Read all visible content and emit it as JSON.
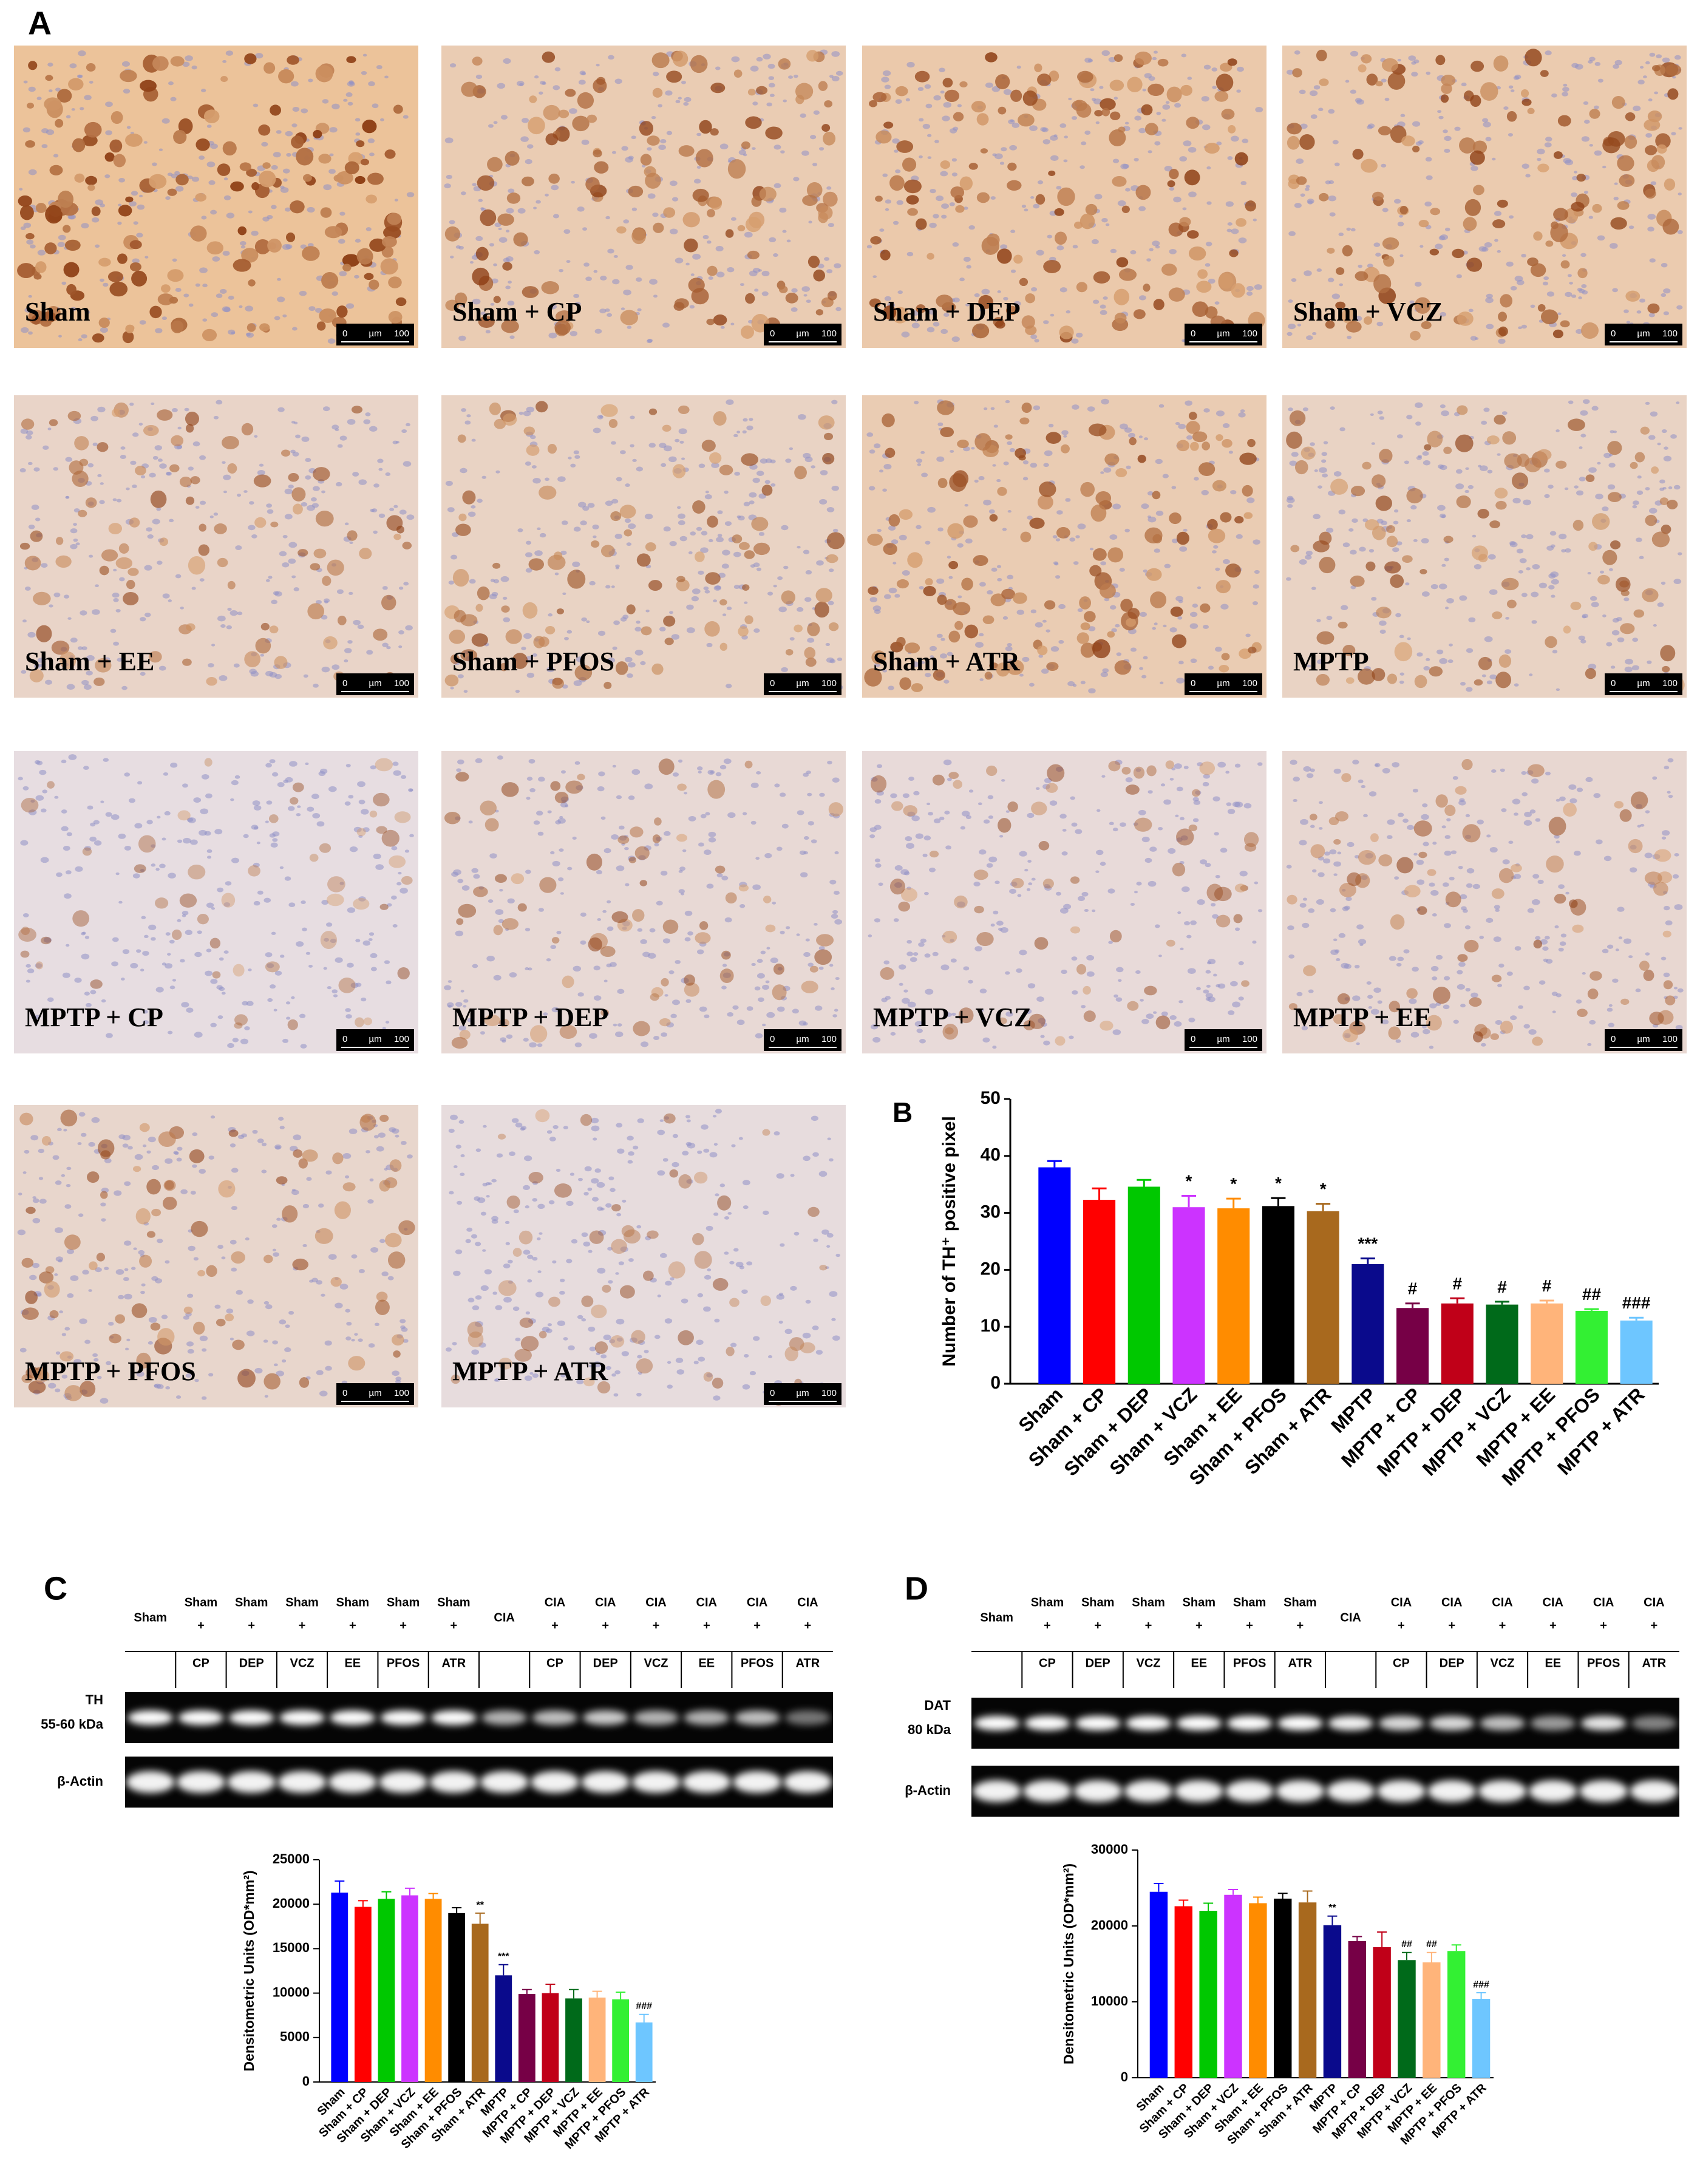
{
  "panel_labels": [
    "A",
    "B",
    "C",
    "D"
  ],
  "micrographs": {
    "labels": [
      "Sham",
      "Sham + CP",
      "Sham + DEP",
      "Sham + VCZ",
      "Sham + EE",
      "Sham + PFOS",
      "Sham + ATR",
      "MPTP",
      "MPTP + CP",
      "MPTP + DEP",
      "MPTP + VCZ",
      "MPTP + EE",
      "MPTP + PFOS",
      "MPTP + ATR"
    ],
    "scale_bar": {
      "start": "0",
      "unit": "µm",
      "end": "100"
    }
  },
  "blots": [
    {
      "lanes": [
        [
          "Sham"
        ],
        [
          "Sham",
          "+",
          "CP"
        ],
        [
          "Sham",
          "+",
          "DEP"
        ],
        [
          "Sham",
          "+",
          "VCZ"
        ],
        [
          "Sham",
          "+",
          "EE"
        ],
        [
          "Sham",
          "+",
          "PFOS"
        ],
        [
          "Sham",
          "+",
          "ATR"
        ],
        [
          "CIA"
        ],
        [
          "CIA",
          "+",
          "CP"
        ],
        [
          "CIA",
          "+",
          "DEP"
        ],
        [
          "CIA",
          "+",
          "VCZ"
        ],
        [
          "CIA",
          "+",
          "EE"
        ],
        [
          "CIA",
          "+",
          "PFOS"
        ],
        [
          "CIA",
          "+",
          "ATR"
        ]
      ],
      "target_label": [
        "TH",
        "55-60 kDa"
      ],
      "control_label": "β-Actin"
    },
    {
      "lanes": [
        [
          "Sham"
        ],
        [
          "Sham",
          "+",
          "CP"
        ],
        [
          "Sham",
          "+",
          "DEP"
        ],
        [
          "Sham",
          "+",
          "VCZ"
        ],
        [
          "Sham",
          "+",
          "EE"
        ],
        [
          "Sham",
          "+",
          "PFOS"
        ],
        [
          "Sham",
          "+",
          "ATR"
        ],
        [
          "CIA"
        ],
        [
          "CIA",
          "+",
          "CP"
        ],
        [
          "CIA",
          "+",
          "DEP"
        ],
        [
          "CIA",
          "+",
          "VCZ"
        ],
        [
          "CIA",
          "+",
          "EE"
        ],
        [
          "CIA",
          "+",
          "PFOS"
        ],
        [
          "CIA",
          "+",
          "ATR"
        ]
      ],
      "target_label": [
        "DAT",
        "80 kDa"
      ],
      "control_label": "β-Actin"
    }
  ],
  "chart_data": [
    {
      "type": "bar",
      "ylabel": "Number of TH⁺ positive pixel",
      "categories": [
        "Sham",
        "Sham + CP",
        "Sham + DEP",
        "Sham + VCZ",
        "Sham + EE",
        "Sham + PFOS",
        "Sham + ATR",
        "MPTP",
        "MPTP + CP",
        "MPTP + DEP",
        "MPTP + VCZ",
        "MPTP + EE",
        "MPTP + PFOS",
        "MPTP + ATR"
      ],
      "values": [
        38,
        32.3,
        34.6,
        31,
        30.8,
        31.2,
        30.3,
        21,
        13.3,
        14.1,
        13.9,
        14.1,
        12.8,
        11.1
      ],
      "errors": [
        1.1,
        2,
        1.2,
        2,
        1.7,
        1.4,
        1.3,
        1,
        0.8,
        0.9,
        0.5,
        0.5,
        0.3,
        0.5
      ],
      "annotations": [
        null,
        null,
        null,
        "*",
        "*",
        "*",
        "*",
        "***",
        "#",
        "#",
        "#",
        "#",
        "##",
        "###"
      ],
      "colors": [
        "#0000ff",
        "#ff0000",
        "#00c800",
        "#cc33ff",
        "#ff8c00",
        "#000000",
        "#a8691e",
        "#0a0a8c",
        "#760046",
        "#c00018",
        "#006a1a",
        "#ffb47a",
        "#33f033",
        "#6ec6ff"
      ],
      "ylim": [
        0,
        50
      ],
      "yticks": [
        0,
        10,
        20,
        30,
        40,
        50
      ]
    },
    {
      "type": "bar",
      "ylabel": "Densitometric Units (OD*mm²)",
      "categories": [
        "Sham",
        "Sham + CP",
        "Sham + DEP",
        "Sham + VCZ",
        "Sham + EE",
        "Sham + PFOS",
        "Sham + ATR",
        "MPTP",
        "MPTP + CP",
        "MPTP + DEP",
        "MPTP + VCZ",
        "MPTP + EE",
        "MPTP + PFOS",
        "MPTP + ATR"
      ],
      "values": [
        21300,
        19700,
        20600,
        21000,
        20600,
        19000,
        17800,
        12000,
        9900,
        10000,
        9400,
        9500,
        9300,
        6700
      ],
      "errors": [
        1300,
        700,
        800,
        800,
        600,
        600,
        1200,
        1200,
        500,
        1000,
        1000,
        700,
        800,
        900
      ],
      "annotations": [
        null,
        null,
        null,
        null,
        null,
        null,
        "**",
        "***",
        null,
        null,
        null,
        null,
        null,
        "###"
      ],
      "colors": [
        "#0000ff",
        "#ff0000",
        "#00c800",
        "#cc33ff",
        "#ff8c00",
        "#000000",
        "#a8691e",
        "#0a0a8c",
        "#760046",
        "#c00018",
        "#006a1a",
        "#ffb47a",
        "#33f033",
        "#6ec6ff"
      ],
      "ylim": [
        0,
        25000
      ],
      "yticks": [
        0,
        5000,
        10000,
        15000,
        20000,
        25000
      ]
    },
    {
      "type": "bar",
      "ylabel": "Densitometric Units (OD*mm²)",
      "categories": [
        "Sham",
        "Sham + CP",
        "Sham + DEP",
        "Sham + VCZ",
        "Sham + EE",
        "Sham + PFOS",
        "Sham + ATR",
        "MPTP",
        "MPTP + CP",
        "MPTP + DEP",
        "MPTP + VCZ",
        "MPTP + EE",
        "MPTP + PFOS",
        "MPTP + ATR"
      ],
      "values": [
        24500,
        22600,
        22000,
        24100,
        23000,
        23600,
        23100,
        20100,
        18000,
        17200,
        15500,
        15200,
        16700,
        10400
      ],
      "errors": [
        1100,
        800,
        1000,
        700,
        800,
        700,
        1500,
        1200,
        600,
        2000,
        1000,
        1300,
        800,
        800
      ],
      "annotations": [
        null,
        null,
        null,
        null,
        null,
        null,
        null,
        "**",
        null,
        null,
        "##",
        "##",
        null,
        "###"
      ],
      "colors": [
        "#0000ff",
        "#ff0000",
        "#00c800",
        "#cc33ff",
        "#ff8c00",
        "#000000",
        "#a8691e",
        "#0a0a8c",
        "#760046",
        "#c00018",
        "#006a1a",
        "#ffb47a",
        "#33f033",
        "#6ec6ff"
      ],
      "ylim": [
        0,
        30000
      ],
      "yticks": [
        0,
        10000,
        20000,
        30000
      ]
    }
  ]
}
